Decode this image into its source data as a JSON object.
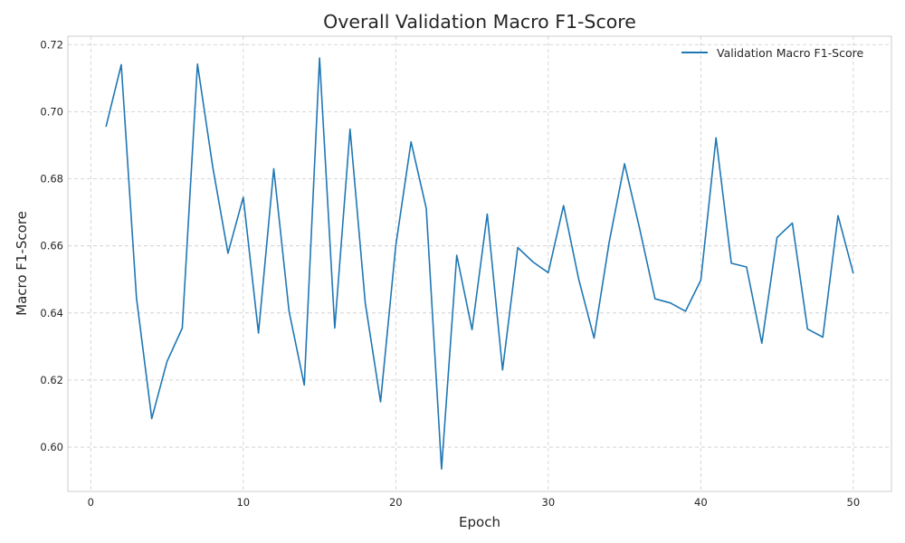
{
  "chart_data": {
    "type": "line",
    "title": "Overall Validation Macro F1-Score",
    "xlabel": "Epoch",
    "ylabel": "Macro F1-Score",
    "xlim": [
      -1.5,
      52.5
    ],
    "ylim": [
      0.5868,
      0.7225
    ],
    "xticks": [
      0,
      10,
      20,
      30,
      40,
      50
    ],
    "yticks": [
      0.6,
      0.62,
      0.64,
      0.66,
      0.68,
      0.7,
      0.72
    ],
    "ytick_labels": [
      "0.60",
      "0.62",
      "0.64",
      "0.66",
      "0.68",
      "0.70",
      "0.72"
    ],
    "grid": true,
    "legend": "top-right",
    "colors": {
      "series": "#1f77b4",
      "grid": "#cccccc",
      "frame": "#cccccc",
      "text": "#262626"
    },
    "series": [
      {
        "name": "Validation Macro F1-Score",
        "x": [
          1,
          2,
          3,
          4,
          5,
          6,
          7,
          8,
          9,
          10,
          11,
          12,
          13,
          14,
          15,
          16,
          17,
          18,
          19,
          20,
          21,
          22,
          23,
          24,
          25,
          26,
          27,
          28,
          29,
          30,
          31,
          32,
          33,
          34,
          35,
          36,
          37,
          38,
          39,
          40,
          41,
          42,
          43,
          44,
          45,
          46,
          47,
          48,
          49,
          50
        ],
        "values": [
          0.6955,
          0.714,
          0.6445,
          0.6085,
          0.6255,
          0.6355,
          0.7142,
          0.6835,
          0.6578,
          0.6745,
          0.634,
          0.683,
          0.6405,
          0.6185,
          0.716,
          0.6355,
          0.6948,
          0.643,
          0.6135,
          0.66,
          0.691,
          0.6712,
          0.5935,
          0.6572,
          0.635,
          0.6695,
          0.623,
          0.6595,
          0.6552,
          0.652,
          0.672,
          0.65,
          0.6325,
          0.6612,
          0.6845,
          0.665,
          0.6442,
          0.643,
          0.6405,
          0.6498,
          0.6922,
          0.6548,
          0.6537,
          0.631,
          0.6625,
          0.6668,
          0.6352,
          0.6328,
          0.669,
          0.6518
        ]
      }
    ]
  }
}
